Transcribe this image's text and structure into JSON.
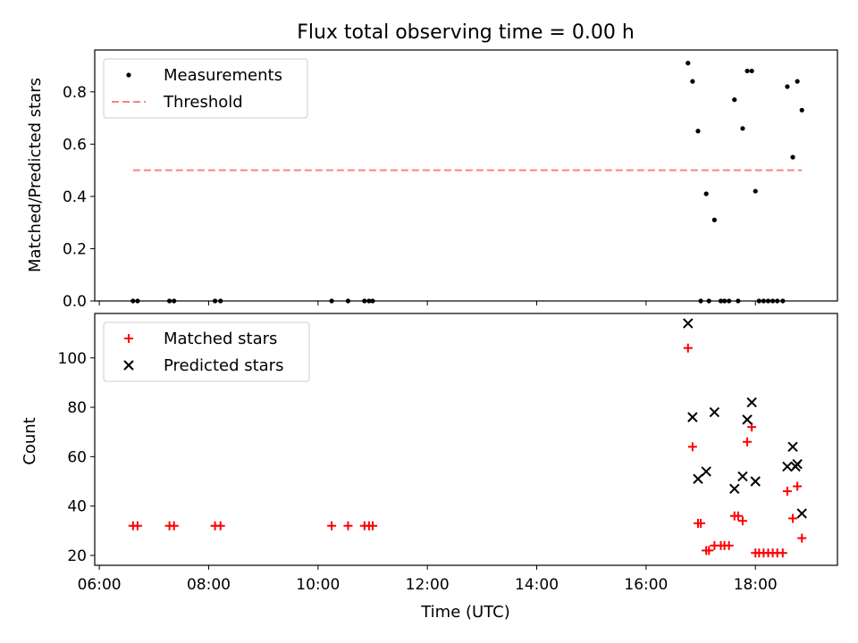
{
  "chart_data": [
    {
      "type": "scatter",
      "title": "Flux total observing time = 0.00 h",
      "xlabel": "",
      "ylabel": "Matched/Predicted stars",
      "xlim": [
        "05:55",
        "19:30"
      ],
      "ylim": [
        0,
        0.96
      ],
      "yticks": [
        "0.0",
        "0.2",
        "0.4",
        "0.6",
        "0.8"
      ],
      "legend_position": "top-left",
      "series": [
        {
          "name": "Measurements",
          "marker": "dot",
          "color": "#000000",
          "points": [
            {
              "x": "06:37",
              "y": 0
            },
            {
              "x": "06:42",
              "y": 0
            },
            {
              "x": "07:17",
              "y": 0
            },
            {
              "x": "07:22",
              "y": 0
            },
            {
              "x": "08:07",
              "y": 0
            },
            {
              "x": "08:13",
              "y": 0
            },
            {
              "x": "10:15",
              "y": 0
            },
            {
              "x": "10:33",
              "y": 0
            },
            {
              "x": "10:51",
              "y": 0
            },
            {
              "x": "10:56",
              "y": 0
            },
            {
              "x": "11:00",
              "y": 0
            },
            {
              "x": "16:46",
              "y": 0.91
            },
            {
              "x": "16:51",
              "y": 0.84
            },
            {
              "x": "16:57",
              "y": 0.65
            },
            {
              "x": "17:00",
              "y": 0
            },
            {
              "x": "17:06",
              "y": 0.41
            },
            {
              "x": "17:09",
              "y": 0
            },
            {
              "x": "17:15",
              "y": 0.31
            },
            {
              "x": "17:22",
              "y": 0
            },
            {
              "x": "17:26",
              "y": 0
            },
            {
              "x": "17:31",
              "y": 0
            },
            {
              "x": "17:37",
              "y": 0.77
            },
            {
              "x": "17:41",
              "y": 0
            },
            {
              "x": "17:46",
              "y": 0.66
            },
            {
              "x": "17:51",
              "y": 0.88
            },
            {
              "x": "17:56",
              "y": 0.88
            },
            {
              "x": "18:00",
              "y": 0.42
            },
            {
              "x": "18:04",
              "y": 0
            },
            {
              "x": "18:09",
              "y": 0
            },
            {
              "x": "18:14",
              "y": 0
            },
            {
              "x": "18:19",
              "y": 0
            },
            {
              "x": "18:24",
              "y": 0
            },
            {
              "x": "18:30",
              "y": 0
            },
            {
              "x": "18:35",
              "y": 0.82
            },
            {
              "x": "18:41",
              "y": 0.55
            },
            {
              "x": "18:46",
              "y": 0.84
            },
            {
              "x": "18:51",
              "y": 0.73
            }
          ]
        },
        {
          "name": "Threshold",
          "type": "line",
          "style": "dashed",
          "color": "#ff8080",
          "x": [
            "06:37",
            "18:51"
          ],
          "y": [
            0.5,
            0.5
          ]
        }
      ]
    },
    {
      "type": "scatter",
      "title": "",
      "xlabel": "Time (UTC)",
      "ylabel": "Count",
      "xlim": [
        "05:55",
        "19:30"
      ],
      "ylim": [
        16,
        118
      ],
      "yticks": [
        "20",
        "40",
        "60",
        "80",
        "100"
      ],
      "xticks": [
        "06:00",
        "08:00",
        "10:00",
        "12:00",
        "14:00",
        "16:00",
        "18:00"
      ],
      "legend_position": "top-left",
      "series": [
        {
          "name": "Matched stars",
          "marker": "plus",
          "color": "#ff0000",
          "points": [
            {
              "x": "06:37",
              "y": 32
            },
            {
              "x": "06:42",
              "y": 32
            },
            {
              "x": "07:17",
              "y": 32
            },
            {
              "x": "07:22",
              "y": 32
            },
            {
              "x": "08:07",
              "y": 32
            },
            {
              "x": "08:13",
              "y": 32
            },
            {
              "x": "10:15",
              "y": 32
            },
            {
              "x": "10:33",
              "y": 32
            },
            {
              "x": "10:51",
              "y": 32
            },
            {
              "x": "10:56",
              "y": 32
            },
            {
              "x": "11:00",
              "y": 32
            },
            {
              "x": "16:46",
              "y": 104
            },
            {
              "x": "16:51",
              "y": 64
            },
            {
              "x": "16:57",
              "y": 33
            },
            {
              "x": "17:00",
              "y": 33
            },
            {
              "x": "17:06",
              "y": 22
            },
            {
              "x": "17:09",
              "y": 22
            },
            {
              "x": "17:15",
              "y": 24
            },
            {
              "x": "17:22",
              "y": 24
            },
            {
              "x": "17:26",
              "y": 24
            },
            {
              "x": "17:31",
              "y": 24
            },
            {
              "x": "17:37",
              "y": 36
            },
            {
              "x": "17:41",
              "y": 36
            },
            {
              "x": "17:46",
              "y": 34
            },
            {
              "x": "17:51",
              "y": 66
            },
            {
              "x": "17:56",
              "y": 72
            },
            {
              "x": "18:00",
              "y": 21
            },
            {
              "x": "18:04",
              "y": 21
            },
            {
              "x": "18:09",
              "y": 21
            },
            {
              "x": "18:14",
              "y": 21
            },
            {
              "x": "18:19",
              "y": 21
            },
            {
              "x": "18:24",
              "y": 21
            },
            {
              "x": "18:30",
              "y": 21
            },
            {
              "x": "18:35",
              "y": 46
            },
            {
              "x": "18:41",
              "y": 35
            },
            {
              "x": "18:46",
              "y": 48
            },
            {
              "x": "18:51",
              "y": 27
            }
          ]
        },
        {
          "name": "Predicted stars",
          "marker": "x",
          "color": "#000000",
          "points": [
            {
              "x": "16:46",
              "y": 114
            },
            {
              "x": "16:51",
              "y": 76
            },
            {
              "x": "16:57",
              "y": 51
            },
            {
              "x": "17:06",
              "y": 54
            },
            {
              "x": "17:15",
              "y": 78
            },
            {
              "x": "17:37",
              "y": 47
            },
            {
              "x": "17:46",
              "y": 52
            },
            {
              "x": "17:51",
              "y": 75
            },
            {
              "x": "17:56",
              "y": 82
            },
            {
              "x": "18:00",
              "y": 50
            },
            {
              "x": "18:35",
              "y": 56
            },
            {
              "x": "18:41",
              "y": 64
            },
            {
              "x": "18:44",
              "y": 56
            },
            {
              "x": "18:46",
              "y": 57
            },
            {
              "x": "18:51",
              "y": 37
            }
          ]
        }
      ]
    }
  ]
}
